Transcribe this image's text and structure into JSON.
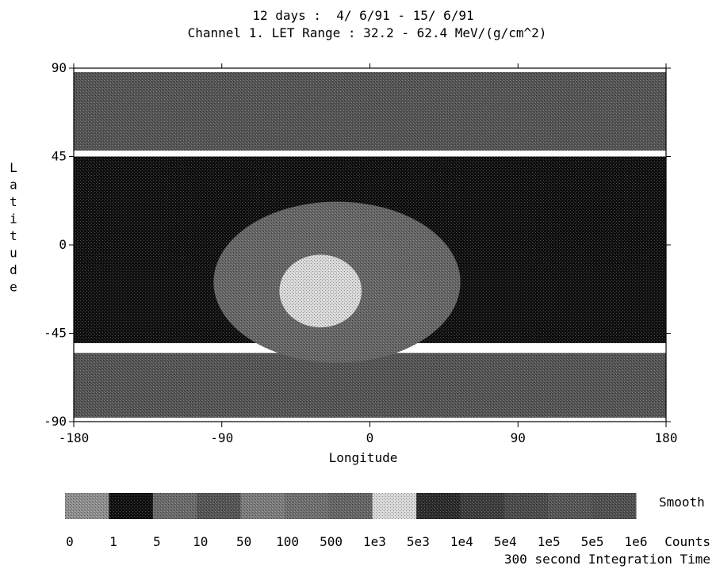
{
  "chart_data": {
    "type": "heatmap",
    "title_line1": "12 days :  4/ 6/91 - 15/ 6/91",
    "title_line2": "Channel 1. LET Range : 32.2 - 62.4 MeV/(g/cm^2)",
    "xlabel": "Longitude",
    "ylabel": "Latitude",
    "xlim": [
      -180,
      180
    ],
    "ylim": [
      -90,
      90
    ],
    "x_ticks": [
      "-180",
      "-90",
      "0",
      "90",
      "180"
    ],
    "y_ticks": [
      "90",
      "45",
      "0",
      "-45",
      "-90"
    ],
    "x_tick_values": [
      -180,
      -90,
      0,
      90,
      180
    ],
    "y_tick_values": [
      90,
      45,
      0,
      -45,
      -90
    ],
    "regions": [
      {
        "name": "northern high-latitude band",
        "lon": [
          -180,
          180
        ],
        "lat": [
          48,
          88
        ],
        "bin": "10-50"
      },
      {
        "name": "southern high-latitude band",
        "lon": [
          -180,
          180
        ],
        "lat": [
          -88,
          -55
        ],
        "bin": "10-50"
      },
      {
        "name": "mid-latitude quiet belt",
        "lon": [
          -180,
          180
        ],
        "lat": [
          -50,
          45
        ],
        "bin": "1-5"
      },
      {
        "name": "South Atlantic Anomaly outer",
        "lon": [
          -95,
          55
        ],
        "lat": [
          -60,
          22
        ],
        "bin": "500-1e3"
      },
      {
        "name": "South Atlantic Anomaly core",
        "lon": [
          -55,
          -5
        ],
        "lat": [
          -42,
          -5
        ],
        "bin": "1e3-5e3"
      }
    ],
    "colorbar": {
      "bin_labels": [
        "0",
        "1",
        "5",
        "10",
        "50",
        "100",
        "500",
        "1e3",
        "5e3",
        "1e4",
        "5e4",
        "1e5",
        "5e5",
        "1e6"
      ],
      "bins": [
        {
          "range": "0-1",
          "color": "#8f8f8f"
        },
        {
          "range": "1-5",
          "color": "#0f0f0f"
        },
        {
          "range": "5-10",
          "color": "#6a6a6a"
        },
        {
          "range": "10-50",
          "color": "#545454"
        },
        {
          "range": "50-100",
          "color": "#7c7c7c"
        },
        {
          "range": "100-500",
          "color": "#6f6f6f"
        },
        {
          "range": "500-1e3",
          "color": "#656565"
        },
        {
          "range": "1e3-5e3",
          "color": "#d8d8d8"
        },
        {
          "range": "5e3-1e4",
          "color": "#2a2a2a"
        },
        {
          "range": "1e4-5e4",
          "color": "#3c3c3c"
        },
        {
          "range": "5e4-1e5",
          "color": "#4a4a4a"
        },
        {
          "range": "1e5-5e5",
          "color": "#555555"
        },
        {
          "range": "5e5-1e6",
          "color": "#4f4f4f"
        }
      ],
      "units_label": "Counts",
      "right_label": "Smooth",
      "footer": "300 second Integration Time"
    }
  }
}
